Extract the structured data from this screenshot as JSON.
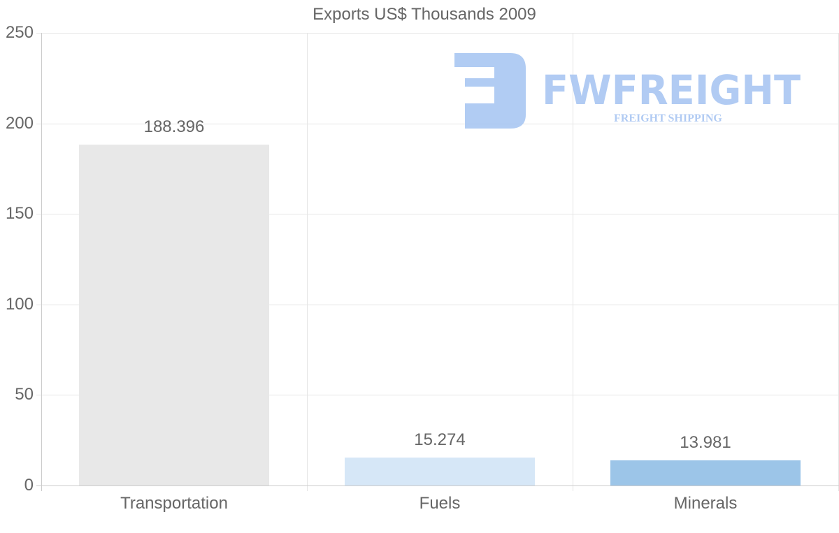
{
  "chart_data": {
    "type": "bar",
    "title": "Exports US$ Thousands 2009",
    "categories": [
      "Transportation",
      "Fuels",
      "Minerals"
    ],
    "values": [
      188.396,
      15.274,
      13.981
    ],
    "value_labels": [
      "188.396",
      "15.274",
      "13.981"
    ],
    "bar_colors": [
      "#e8e8e8",
      "#d6e7f7",
      "#9cc5e8"
    ],
    "xlabel": "",
    "ylabel": "",
    "ylim": [
      0,
      250
    ],
    "yticks": [
      0,
      50,
      100,
      150,
      200,
      250
    ],
    "ytick_labels": [
      "0",
      "50",
      "100",
      "150",
      "200",
      "250"
    ],
    "grid": true,
    "legend": "none"
  },
  "watermark": {
    "brand": "FWFREIGHT",
    "tagline": "FREIGHT SHIPPING",
    "color": "#a9c6f2"
  },
  "colors": {
    "text": "#666666",
    "grid": "#e5e5e5",
    "axis": "#cccccc"
  }
}
